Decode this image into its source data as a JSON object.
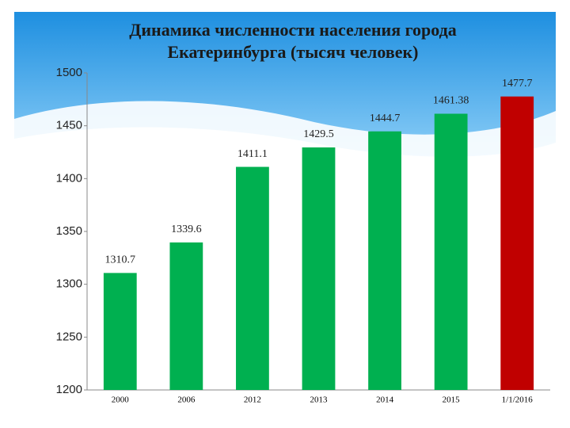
{
  "chart_data": {
    "type": "bar",
    "title": [
      "Динамика численности населения города",
      "Екатеринбурга (тысяч человек)"
    ],
    "categories": [
      "2000",
      "2006",
      "2012",
      "2013",
      "2014",
      "2015",
      "1/1/2016"
    ],
    "values": [
      1310.7,
      1339.6,
      1411.1,
      1429.5,
      1444.7,
      1461.38,
      1477.7
    ],
    "colors": [
      "#00b050",
      "#00b050",
      "#00b050",
      "#00b050",
      "#00b050",
      "#00b050",
      "#c00000"
    ],
    "ylim": [
      1200,
      1500
    ],
    "yticks": [
      1200,
      1250,
      1300,
      1350,
      1400,
      1450,
      1500
    ],
    "grid": false
  }
}
